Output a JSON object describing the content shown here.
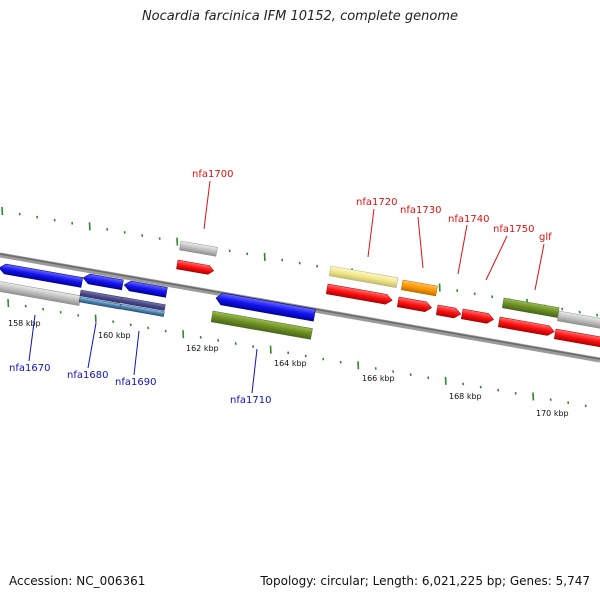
{
  "title": "Nocardia farcinica IFM 10152, complete genome",
  "footer": {
    "accession": "Accession: NC_006361",
    "summary": "Topology: circular; Length: 6,021,225 bp; Genes: 5,747"
  },
  "kbp_labels": [
    "158 kbp",
    "160 kbp",
    "162 kbp",
    "164 kbp",
    "166 kbp",
    "168 kbp",
    "170 kbp"
  ],
  "gene_labels": {
    "nfa1700": "nfa1700",
    "nfa1720": "nfa1720",
    "nfa1730": "nfa1730",
    "nfa1740": "nfa1740",
    "nfa1750": "nfa1750",
    "glf": "glf",
    "nfa1670": "nfa1670",
    "nfa1680": "nfa1680",
    "nfa1690": "nfa1690",
    "nfa1710": "nfa1710"
  },
  "colors": {
    "backbone": "#808080",
    "tick": "#2a8a2a",
    "forward_label": "#e01010",
    "reverse_label": "#1010c0",
    "cds_red": "#ff1010",
    "cds_blue": "#1414f0",
    "cds_green": "#6b8e23",
    "cds_orange": "#ff9900",
    "cds_yellow": "#f0e68c",
    "cds_gray": "#c0c0c0"
  }
}
